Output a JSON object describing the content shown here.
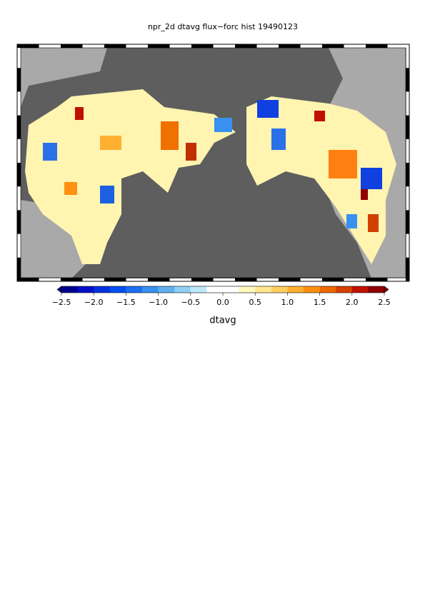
{
  "title": "npr_2d dtavg flux−forc hist 19490123",
  "colorbar": {
    "label": "dtavg",
    "lim": [
      -2.5,
      2.5
    ],
    "ticks": [
      {
        "value": -2.5,
        "label": "−2.5"
      },
      {
        "value": -2.0,
        "label": "−2.0"
      },
      {
        "value": -1.5,
        "label": "−1.5"
      },
      {
        "value": -1.0,
        "label": "−1.0"
      },
      {
        "value": -0.5,
        "label": "−0.5"
      },
      {
        "value": 0,
        "label": "0.0"
      },
      0.5,
      {
        "value": 1,
        "label": "1.0"
      },
      1.5,
      {
        "value": 2,
        "label": "2.0"
      },
      2.5
    ],
    "colors": [
      "#00008f",
      "#0010c8",
      "#0030e0",
      "#0050f0",
      "#1a70f0",
      "#3890f0",
      "#60b0f0",
      "#90d0f8",
      "#c0e8fc",
      "#ffffff",
      "#ffffff",
      "#fff8c0",
      "#ffe890",
      "#ffd060",
      "#ffb030",
      "#ff9010",
      "#f06800",
      "#d84000",
      "#c01000",
      "#900000"
    ]
  }
}
